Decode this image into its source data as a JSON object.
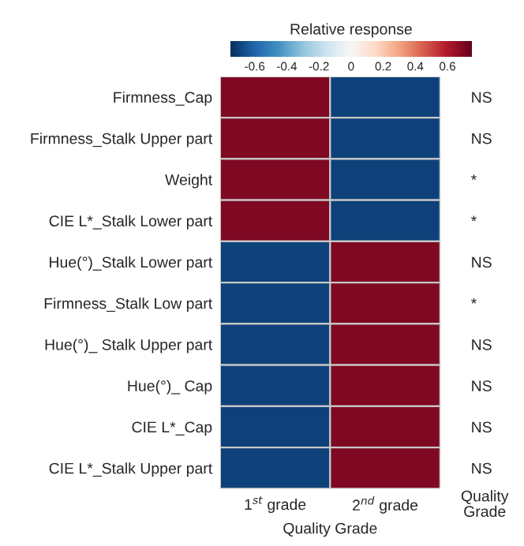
{
  "chart_data": {
    "type": "heatmap",
    "clabel": "Relative response",
    "xlabel": "Quality Grade",
    "categories": [
      "1$^{st}$ grade",
      "2$^{nd}$ grade"
    ],
    "y_categories": [
      "Firmness_Cap",
      "Firmness_Stalk Upper part",
      "Weight",
      "CIE L*_Stalk Lower part",
      "Hue(°)_Stalk Lower part",
      "Firmness_Stalk Low part",
      "Hue(°)_ Stalk Upper part",
      "Hue(°)_ Cap",
      "CIE L*_Cap",
      "CIE L*_Stalk Upper part"
    ],
    "y2_categories": [
      "NS",
      "NS",
      "*",
      "*",
      "NS",
      "*",
      "NS",
      "NS",
      "NS",
      "NS"
    ],
    "cells": [
      [
        0.7,
        -0.7
      ],
      [
        0.7,
        -0.7
      ],
      [
        0.7,
        -0.7
      ],
      [
        0.7,
        -0.7
      ],
      [
        -0.7,
        0.7
      ],
      [
        -0.7,
        0.7
      ],
      [
        -0.7,
        0.7
      ],
      [
        -0.7,
        0.7
      ],
      [
        -0.7,
        0.7
      ],
      [
        -0.7,
        0.7
      ]
    ],
    "clim": [
      -0.75,
      0.75
    ],
    "cticks": [
      -0.6,
      -0.4,
      -0.2,
      0,
      0.2,
      0.4,
      0.6
    ],
    "annotations": [
      "Quality Grade"
    ]
  }
}
